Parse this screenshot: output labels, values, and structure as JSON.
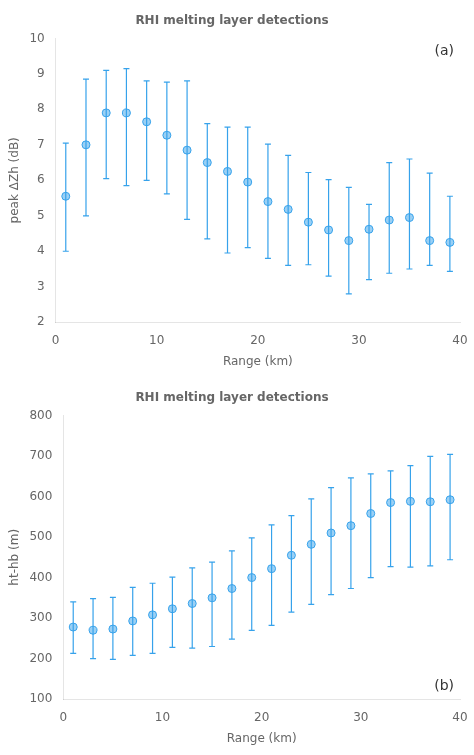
{
  "chart_data": [
    {
      "type": "scatter",
      "title": "RHI melting layer detections",
      "x_label": "Range (km)",
      "y_label": "peak ΔZh (dB)",
      "annotation": "(a)",
      "marker": "o",
      "grid": false,
      "legend": false,
      "x": [
        1,
        3,
        5,
        7,
        9,
        11,
        13,
        15,
        17,
        19,
        21,
        23,
        25,
        27,
        29,
        31,
        33,
        35,
        37,
        39
      ],
      "values": [
        5.55,
        7.0,
        7.9,
        7.9,
        7.65,
        7.27,
        6.85,
        6.5,
        6.25,
        5.95,
        5.4,
        5.18,
        4.82,
        4.6,
        4.3,
        4.62,
        4.88,
        4.95,
        4.3,
        4.25
      ],
      "yerr_lo": [
        1.55,
        2.0,
        1.85,
        2.05,
        1.65,
        1.65,
        1.95,
        2.15,
        2.3,
        1.85,
        1.6,
        1.58,
        1.2,
        1.3,
        1.5,
        1.42,
        1.5,
        1.45,
        0.7,
        0.82
      ],
      "yerr_hi": [
        1.5,
        1.85,
        1.2,
        1.25,
        1.15,
        1.5,
        1.95,
        1.1,
        1.25,
        1.55,
        1.62,
        1.52,
        1.4,
        1.42,
        1.5,
        0.7,
        1.62,
        1.65,
        1.9,
        1.3
      ],
      "xlim": [
        0,
        40
      ],
      "xticks": [
        0,
        10,
        20,
        30,
        40
      ],
      "ylim": [
        2,
        10
      ],
      "yticks": [
        2,
        3,
        4,
        5,
        6,
        7,
        8,
        9,
        10
      ]
    },
    {
      "type": "scatter",
      "title": "RHI melting layer detections",
      "x_label": "Range (km)",
      "y_label": "ht-hb (m)",
      "annotation": "(b)",
      "marker": "o",
      "grid": false,
      "legend": false,
      "x": [
        1,
        3,
        5,
        7,
        9,
        11,
        13,
        15,
        17,
        19,
        21,
        23,
        25,
        27,
        29,
        31,
        33,
        35,
        37,
        39
      ],
      "values": [
        278,
        270,
        273,
        293,
        308,
        323,
        336,
        350,
        373,
        400,
        422,
        455,
        482,
        510,
        528,
        558,
        585,
        588,
        587,
        592
      ],
      "yerr_lo": [
        65,
        70,
        75,
        85,
        95,
        95,
        110,
        120,
        125,
        130,
        140,
        140,
        148,
        152,
        155,
        158,
        158,
        162,
        158,
        148
      ],
      "yerr_hi": [
        62,
        78,
        78,
        83,
        78,
        78,
        88,
        88,
        93,
        98,
        108,
        98,
        112,
        112,
        118,
        98,
        78,
        88,
        112,
        112
      ],
      "xlim": [
        0,
        40
      ],
      "xticks": [
        0,
        10,
        20,
        30,
        40
      ],
      "ylim": [
        100,
        800
      ],
      "yticks": [
        100,
        200,
        300,
        400,
        500,
        600,
        700,
        800
      ]
    }
  ]
}
